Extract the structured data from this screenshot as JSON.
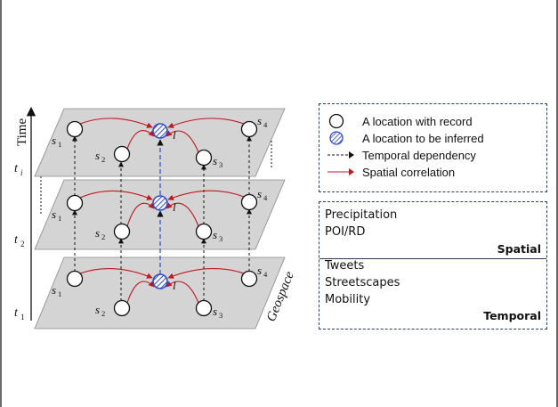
{
  "diagram": {
    "axis_labels": {
      "time": "Time",
      "geospace": "Geospace"
    },
    "time_ticks": [
      {
        "base": "t",
        "sub": "i"
      },
      {
        "base": "t",
        "sub": "2"
      },
      {
        "base": "t",
        "sub": "1"
      }
    ],
    "node_labels": [
      {
        "base": "s",
        "sub": "1"
      },
      {
        "base": "s",
        "sub": "2"
      },
      {
        "base": "s",
        "sub": "3"
      },
      {
        "base": "s",
        "sub": "4"
      },
      {
        "base": "l",
        "sub": ""
      }
    ],
    "colors": {
      "plane_fill": "#d4d4d4",
      "spatial_arrow": "#c0181c",
      "temporal_arrow": "#111111",
      "inferred_dash": "#2f4bd6",
      "inferred_fill": "#3a55d8"
    }
  },
  "legend": {
    "items": [
      {
        "icon": "circle-icon",
        "label": "A location with record"
      },
      {
        "icon": "hatched-circle-icon",
        "label": "A location to be inferred"
      },
      {
        "icon": "dashed-arrow-icon",
        "label": "Temporal dependency"
      },
      {
        "icon": "red-arrow-icon",
        "label": "Spatial correlation"
      }
    ]
  },
  "features": {
    "spatial": {
      "items": [
        "Precipitation",
        "POI/RD"
      ],
      "heading": "Spatial"
    },
    "temporal": {
      "items": [
        "Tweets",
        "Streetscapes",
        "Mobility"
      ],
      "heading": "Temporal"
    }
  }
}
